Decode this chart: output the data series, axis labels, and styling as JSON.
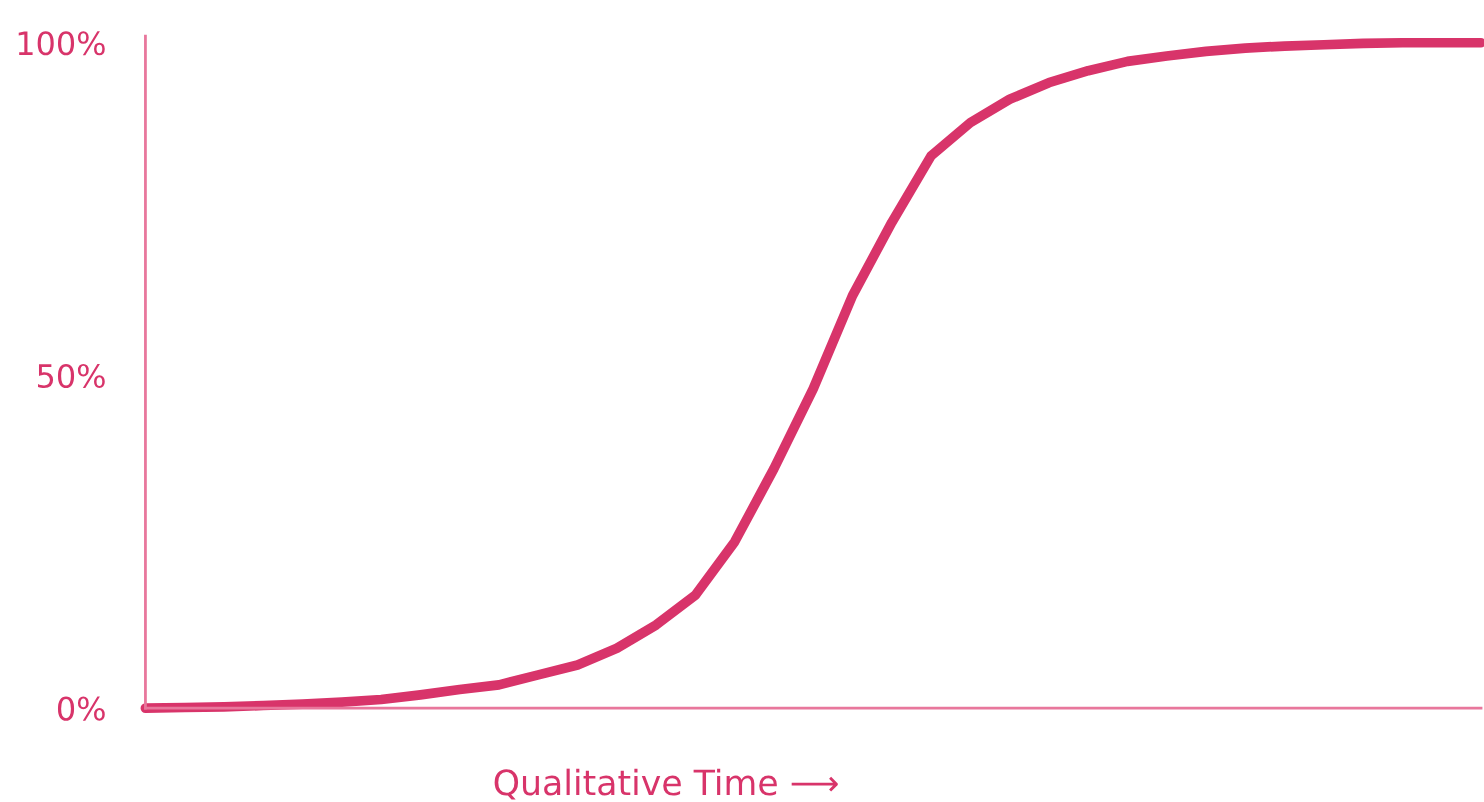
{
  "chart_data": {
    "type": "line",
    "xlabel": "Qualitative Time ⟶",
    "categories": [
      null,
      null,
      null,
      null,
      null,
      null,
      null,
      null,
      null,
      null,
      null,
      null,
      null,
      null,
      null,
      null,
      null,
      null,
      null,
      null,
      null,
      null,
      null,
      null,
      null,
      null,
      null,
      null,
      null,
      null,
      null,
      null,
      null,
      null,
      null
    ],
    "series": [
      {
        "color": "#d8346a",
        "values": [
          0,
          0.1,
          0.2,
          0.4,
          0.6,
          0.9,
          1.3,
          2,
          2.8,
          3.5,
          5,
          6.5,
          9,
          12.5,
          17,
          25,
          36,
          48,
          62,
          73,
          83,
          88,
          91.5,
          94,
          95.8,
          97.2,
          98,
          98.7,
          99.2,
          99.5,
          99.7,
          99.9,
          100,
          100,
          100
        ]
      }
    ],
    "ylim": [
      0,
      101
    ],
    "yticks": [
      {
        "value": 0,
        "label": "0%"
      },
      {
        "value": 50,
        "label": "50%"
      },
      {
        "value": 100,
        "label": "100%"
      }
    ],
    "grid": false,
    "legend": false,
    "marker": "none",
    "line_style": "solid"
  }
}
